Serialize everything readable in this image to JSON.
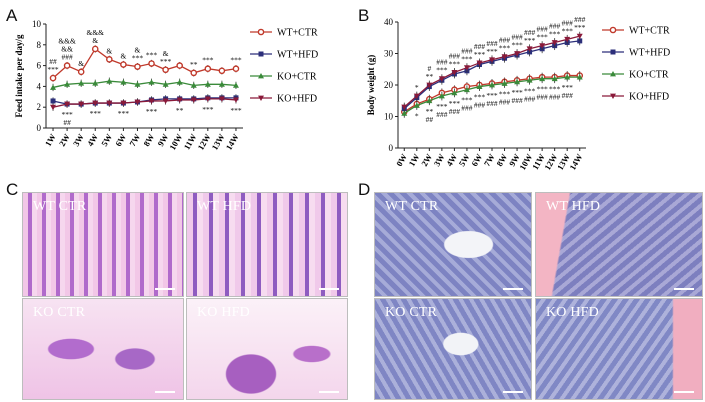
{
  "panels": {
    "A": {
      "letter": "A"
    },
    "B": {
      "letter": "B"
    },
    "C": {
      "letter": "C",
      "images": [
        "WT CTR",
        "WT HFD",
        "KO CTR",
        "KO HFD"
      ]
    },
    "D": {
      "letter": "D",
      "images": [
        "WT CTR",
        "WT HFD",
        "KO CTR",
        "KO HFD"
      ]
    }
  },
  "legend": [
    "WT+CTR",
    "WT+HFD",
    "KO+CTR",
    "KO+HFD"
  ],
  "colors": {
    "wt_ctr": "#c0392b",
    "wt_hfd": "#2c2f7a",
    "ko_ctr": "#3a8a3a",
    "ko_hfd": "#8a1a3a",
    "he_pink": "#e7a9d6",
    "he_purple": "#9a6ac7",
    "blue_stain": "#8c95cc"
  },
  "chart_data": [
    {
      "type": "line",
      "ylabel": "Feed intake per day/g",
      "xlabel": "",
      "ylim": [
        0,
        10
      ],
      "yticks": [
        "0",
        "2",
        "4",
        "6",
        "8",
        "10"
      ],
      "categories": [
        "1W",
        "2W",
        "3W",
        "4W",
        "5W",
        "6W",
        "7W",
        "8W",
        "9W",
        "10W",
        "11W",
        "12W",
        "13W",
        "14W"
      ],
      "series": [
        {
          "name": "WT+CTR",
          "values": [
            4.8,
            6.0,
            5.4,
            7.6,
            6.6,
            6.1,
            5.9,
            6.2,
            5.6,
            6.0,
            5.3,
            5.7,
            5.5,
            5.7
          ]
        },
        {
          "name": "WT+HFD",
          "values": [
            2.6,
            2.3,
            2.3,
            2.4,
            2.4,
            2.4,
            2.5,
            2.7,
            2.8,
            2.8,
            2.8,
            2.9,
            2.9,
            2.9
          ]
        },
        {
          "name": "KO+CTR",
          "values": [
            3.9,
            4.2,
            4.3,
            4.3,
            4.5,
            4.4,
            4.2,
            4.4,
            4.2,
            4.4,
            4.1,
            4.2,
            4.2,
            4.1
          ]
        },
        {
          "name": "KO+HFD",
          "values": [
            2.0,
            2.3,
            2.3,
            2.4,
            2.4,
            2.4,
            2.5,
            2.6,
            2.6,
            2.7,
            2.7,
            2.8,
            2.8,
            2.7
          ]
        }
      ],
      "annotations_top": [
        "##\n***",
        "&&&\n&&\n###",
        "&",
        "&&&\n&",
        "&",
        "&",
        "&\n***",
        "***",
        "&\n***",
        "",
        "**",
        "***",
        "",
        "***"
      ],
      "annotations_bottom": [
        "",
        "***\n##",
        "",
        "***",
        "",
        "***",
        "",
        "***",
        "",
        "**",
        "",
        "***",
        "",
        "***"
      ]
    },
    {
      "type": "line",
      "ylabel": "Body weight (g)",
      "xlabel": "",
      "ylim": [
        0,
        40
      ],
      "yticks": [
        "0",
        "10",
        "20",
        "30",
        "40"
      ],
      "categories": [
        "0W",
        "1W",
        "2W",
        "3W",
        "4W",
        "5W",
        "6W",
        "7W",
        "8W",
        "9W",
        "10W",
        "11W",
        "12W",
        "13W",
        "14W"
      ],
      "series": [
        {
          "name": "WT+CTR",
          "values": [
            11.5,
            14.0,
            15.5,
            17.5,
            18.5,
            19.5,
            20.0,
            20.5,
            21.0,
            21.5,
            22.0,
            22.5,
            22.5,
            23.0,
            23.0
          ]
        },
        {
          "name": "WT+HFD",
          "values": [
            12.5,
            16.0,
            19.5,
            21.5,
            23.5,
            24.5,
            26.5,
            27.5,
            28.5,
            29.5,
            30.5,
            31.5,
            32.5,
            33.5,
            34.0
          ]
        },
        {
          "name": "KO+CTR",
          "values": [
            11.0,
            13.5,
            15.0,
            16.5,
            17.5,
            18.5,
            19.5,
            20.0,
            20.5,
            21.0,
            21.5,
            22.0,
            22.0,
            22.5,
            22.5
          ]
        },
        {
          "name": "KO+HFD",
          "values": [
            13.0,
            16.5,
            20.0,
            22.0,
            24.0,
            25.5,
            27.0,
            28.0,
            29.0,
            30.0,
            31.5,
            32.5,
            33.5,
            34.5,
            35.5
          ]
        }
      ],
      "annotations_top": [
        "",
        "*",
        "#\n**",
        "###\n***",
        "###\n***",
        "###\n***",
        "###\n***",
        "###\n***",
        "###\n***",
        "###\n***",
        "###\n***",
        "###\n***",
        "###\n***",
        "###\n***",
        "###\n***"
      ],
      "annotations_bottom": [
        "",
        "*",
        "**\n##",
        "***\n###",
        "***\n###",
        "***\n###",
        "***\n###",
        "***\n###",
        "***\n###",
        "***\n###",
        "***\n###",
        "***\n###",
        "***\n###",
        "***\n###",
        ""
      ]
    }
  ]
}
